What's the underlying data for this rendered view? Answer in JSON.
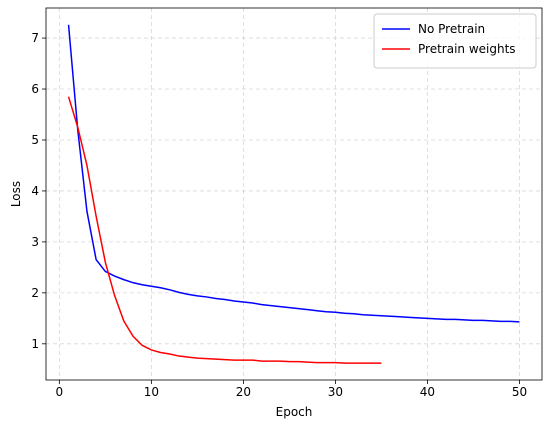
{
  "chart_data": {
    "type": "line",
    "x_label": "Epoch",
    "y_label": "Loss",
    "x": [
      1,
      2,
      3,
      4,
      5,
      6,
      7,
      8,
      9,
      10,
      11,
      12,
      13,
      14,
      15,
      16,
      17,
      18,
      19,
      20,
      21,
      22,
      23,
      24,
      25,
      26,
      27,
      28,
      29,
      30,
      31,
      32,
      33,
      34,
      35,
      36,
      37,
      38,
      39,
      40,
      41,
      42,
      43,
      44,
      45,
      46,
      47,
      48,
      49,
      50
    ],
    "series": [
      {
        "name": "No Pretrain",
        "color": "#0000ff",
        "values": [
          7.26,
          5.2,
          3.6,
          2.65,
          2.42,
          2.33,
          2.26,
          2.2,
          2.16,
          2.13,
          2.1,
          2.06,
          2.01,
          1.97,
          1.94,
          1.92,
          1.89,
          1.87,
          1.84,
          1.82,
          1.8,
          1.77,
          1.75,
          1.73,
          1.71,
          1.69,
          1.67,
          1.65,
          1.63,
          1.62,
          1.6,
          1.59,
          1.57,
          1.56,
          1.55,
          1.54,
          1.53,
          1.52,
          1.51,
          1.5,
          1.49,
          1.48,
          1.48,
          1.47,
          1.46,
          1.46,
          1.45,
          1.44,
          1.44,
          1.43
        ]
      },
      {
        "name": "Pretrain weights",
        "color": "#ff0000",
        "values": [
          5.85,
          5.25,
          4.5,
          3.5,
          2.6,
          1.95,
          1.45,
          1.15,
          0.97,
          0.88,
          0.83,
          0.8,
          0.76,
          0.74,
          0.72,
          0.71,
          0.7,
          0.69,
          0.68,
          0.68,
          0.68,
          0.66,
          0.66,
          0.66,
          0.65,
          0.65,
          0.64,
          0.63,
          0.63,
          0.63,
          0.62,
          0.62,
          0.62,
          0.62,
          0.62,
          null,
          null,
          null,
          null,
          null,
          null,
          null,
          null,
          null,
          null,
          null,
          null,
          null,
          null,
          null
        ]
      }
    ],
    "xlim": [
      -1.45,
      52.45
    ],
    "xticks": [
      0,
      10,
      20,
      30,
      40,
      50
    ],
    "ylim": [
      0.29,
      7.59
    ],
    "yticks": [
      1,
      2,
      3,
      4,
      5,
      6,
      7
    ],
    "grid": true,
    "legend": "upper right"
  }
}
